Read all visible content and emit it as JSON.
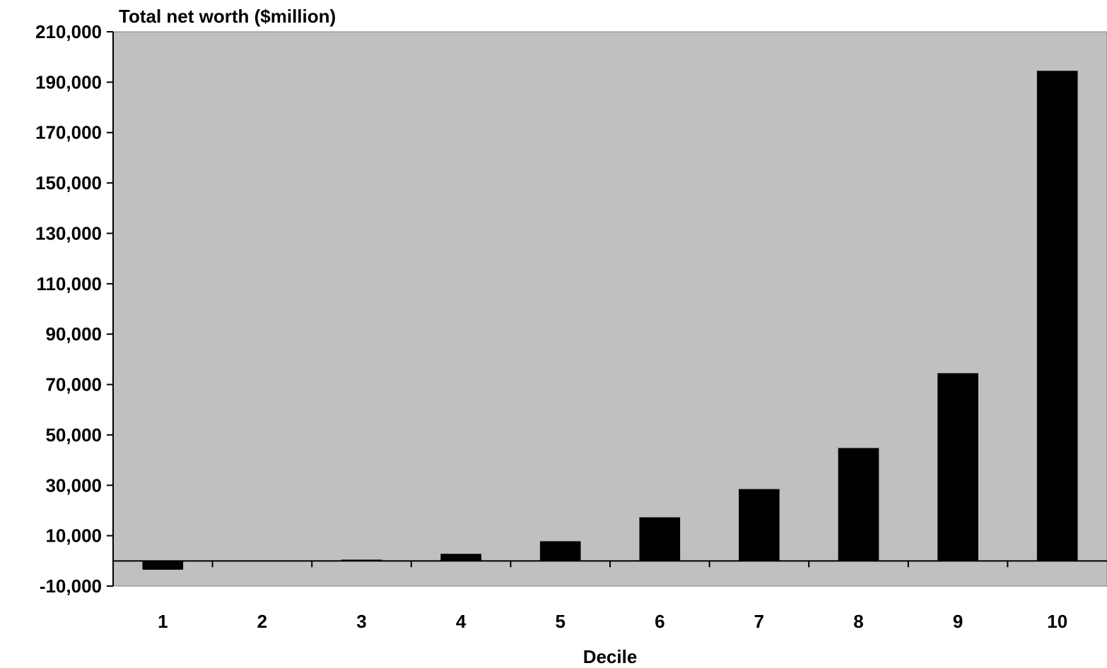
{
  "chart_data": {
    "type": "bar",
    "title": "",
    "ylabel": "Total net worth ($million)",
    "xlabel": "Decile",
    "categories": [
      "1",
      "2",
      "3",
      "4",
      "5",
      "6",
      "7",
      "8",
      "9",
      "10"
    ],
    "values": [
      -3500,
      0,
      500,
      2800,
      7800,
      17300,
      28500,
      44800,
      74500,
      194500
    ],
    "ylim": [
      -10000,
      210000
    ],
    "yticks": [
      -10000,
      10000,
      30000,
      50000,
      70000,
      90000,
      110000,
      130000,
      150000,
      170000,
      190000,
      210000
    ],
    "ytick_labels": [
      "-10,000",
      "10,000",
      "30,000",
      "50,000",
      "70,000",
      "90,000",
      "110,000",
      "130,000",
      "150,000",
      "170,000",
      "190,000",
      "210,000"
    ],
    "grid": false,
    "legend": "none",
    "colors": {
      "plot_background": "#c0c0c0",
      "bar": "#000000",
      "axis": "#000000"
    }
  }
}
